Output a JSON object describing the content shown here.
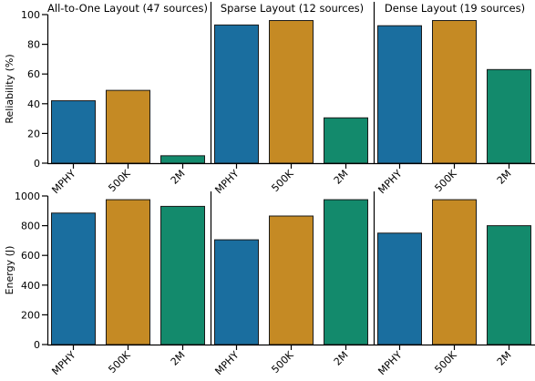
{
  "colors": {
    "MPHY": "#1a6e9f",
    "500K": "#c58a24",
    "2M": "#138a6c",
    "edge": "#1a1a1a"
  },
  "chart_data": {
    "type": "bar",
    "categories": [
      "MPHY",
      "500K",
      "2M"
    ],
    "panels": [
      "All-to-One Layout (47 sources)",
      "Sparse Layout (12 sources)",
      "Dense Layout (19 sources)"
    ],
    "rows": [
      {
        "ylabel": "Reliability (%)",
        "ylim": [
          0,
          100
        ],
        "yticks": [
          0,
          20,
          40,
          60,
          80,
          100
        ],
        "values": [
          [
            42,
            49,
            5
          ],
          [
            93,
            96,
            30.5
          ],
          [
            92.5,
            96,
            63
          ]
        ]
      },
      {
        "ylabel": "Energy (J)",
        "ylim": [
          0,
          1000
        ],
        "yticks": [
          0,
          200,
          400,
          600,
          800,
          1000
        ],
        "values": [
          [
            885,
            975,
            930
          ],
          [
            705,
            865,
            975
          ],
          [
            750,
            975,
            800
          ]
        ]
      }
    ],
    "grid": false,
    "legend": "none"
  }
}
